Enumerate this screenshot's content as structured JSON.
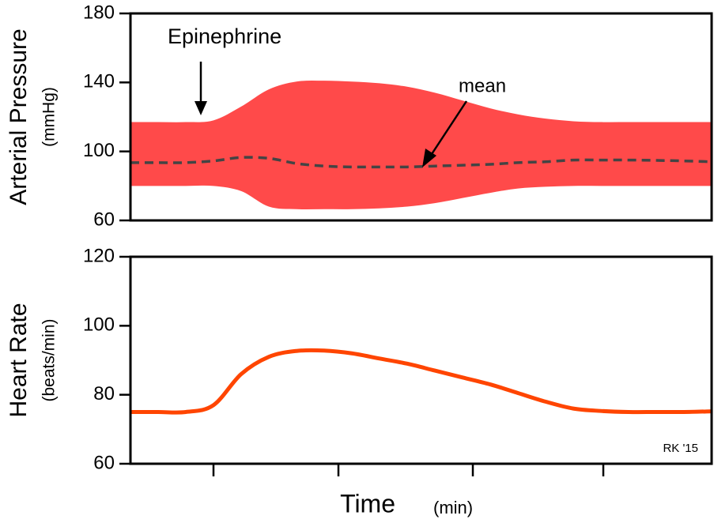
{
  "chart_data": [
    {
      "type": "band",
      "ylabel": "Arterial Pressure",
      "ylabel_unit": "(mmHg)",
      "categories": [
        null,
        null,
        null,
        null,
        null,
        null,
        null,
        null,
        null,
        null,
        null,
        null,
        null,
        null,
        null,
        null,
        null,
        null,
        null,
        null,
        null,
        null
      ],
      "band": {
        "color": "#ff4a4a",
        "upper": [
          117,
          117,
          117,
          118,
          126,
          136,
          140.5,
          141,
          140.5,
          139.5,
          137.5,
          134,
          129.5,
          125,
          121.5,
          119,
          117.5,
          117,
          117,
          117,
          117,
          117
        ],
        "lower": [
          80,
          80,
          80,
          80,
          77,
          68,
          66.5,
          66.5,
          66.5,
          67,
          68,
          70,
          73,
          76,
          78.5,
          79.5,
          80,
          80,
          80,
          80,
          80,
          80
        ]
      },
      "mean": {
        "color": "#444444",
        "values": [
          93.5,
          93.5,
          93.5,
          94.5,
          96.5,
          96,
          93,
          91.5,
          91,
          91,
          91,
          91.5,
          92,
          92.5,
          93.5,
          94,
          95,
          95,
          95,
          94.8,
          94.5,
          94
        ]
      },
      "ylim": [
        60,
        180
      ],
      "yticks": [
        60,
        100,
        140,
        180
      ],
      "annotations": [
        "Epinephrine",
        "mean"
      ]
    },
    {
      "type": "line",
      "ylabel": "Heart Rate",
      "ylabel_unit": "(beats/min)",
      "xlabel": "Time",
      "xlabel_unit": "(min)",
      "categories": [
        null,
        null,
        null,
        null,
        null,
        null,
        null,
        null,
        null,
        null,
        null,
        null,
        null,
        null,
        null,
        null,
        null,
        null,
        null,
        null,
        null,
        null
      ],
      "color": "#ff4500",
      "values": [
        75,
        75,
        75,
        77,
        86,
        91,
        92.7,
        92.8,
        92,
        90.5,
        89,
        87,
        85,
        83,
        80.5,
        78,
        76,
        75.3,
        75,
        75,
        75,
        75.2
      ],
      "ylim": [
        60,
        120
      ],
      "yticks": [
        60,
        80,
        100,
        120
      ],
      "signature": "RK '15"
    }
  ]
}
